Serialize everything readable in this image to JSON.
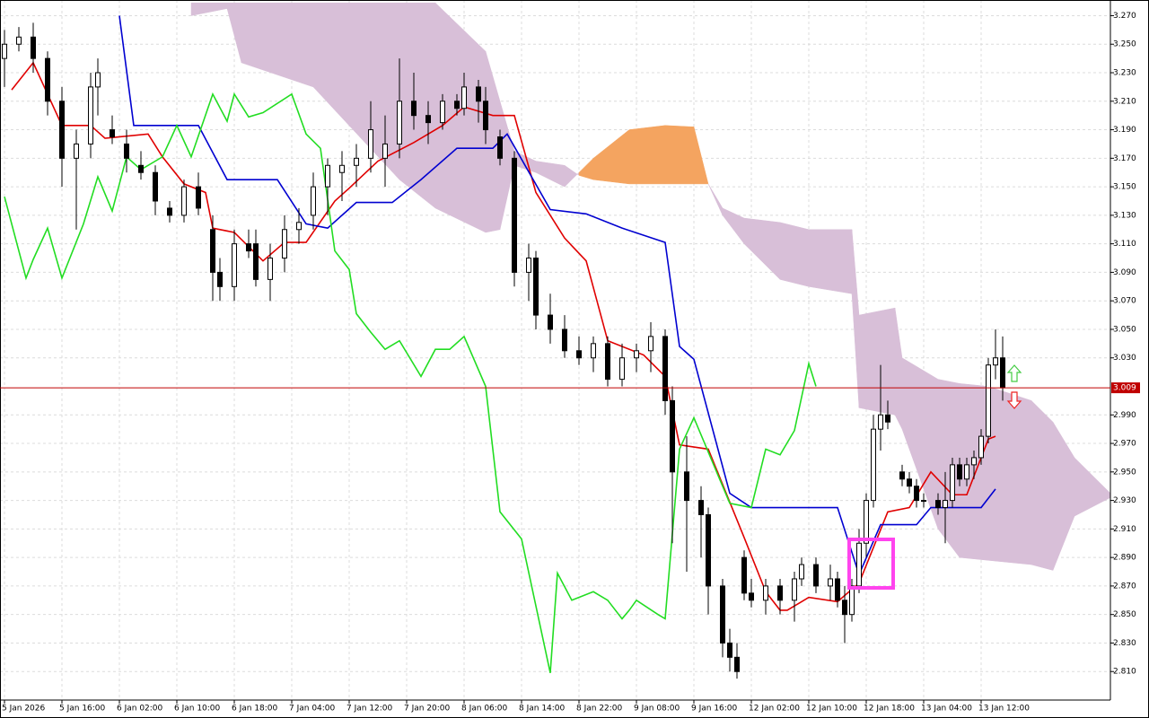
{
  "chart_data": {
    "type": "candlestick",
    "xlim": [
      -0.625,
      154
    ],
    "ylim": [
      2.79,
      3.281
    ],
    "grid": true,
    "xticks": [
      {
        "value": 0,
        "label": "5 Jan 2026"
      },
      {
        "value": 8,
        "label": "5 Jan 16:00"
      },
      {
        "value": 16,
        "label": "6 Jan 02:00"
      },
      {
        "value": 24,
        "label": "6 Jan 10:00"
      },
      {
        "value": 32,
        "label": "6 Jan 18:00"
      },
      {
        "value": 40,
        "label": "7 Jan 04:00"
      },
      {
        "value": 48,
        "label": "7 Jan 12:00"
      },
      {
        "value": 56,
        "label": "7 Jan 20:00"
      },
      {
        "value": 64,
        "label": "8 Jan 06:00"
      },
      {
        "value": 72,
        "label": "8 Jan 14:00"
      },
      {
        "value": 80,
        "label": "8 Jan 22:00"
      },
      {
        "value": 88,
        "label": "9 Jan 08:00"
      },
      {
        "value": 96,
        "label": "9 Jan 16:00"
      },
      {
        "value": 104,
        "label": "12 Jan 02:00"
      },
      {
        "value": 112,
        "label": "12 Jan 10:00"
      },
      {
        "value": 120,
        "label": "12 Jan 18:00"
      },
      {
        "value": 128,
        "label": "13 Jan 04:00"
      },
      {
        "value": 136,
        "label": "13 Jan 12:00"
      }
    ],
    "yticks": [
      {
        "value": 3.27,
        "label": "3.270"
      },
      {
        "value": 3.25,
        "label": "3.250"
      },
      {
        "value": 3.23,
        "label": "3.230"
      },
      {
        "value": 3.21,
        "label": "3.210"
      },
      {
        "value": 3.19,
        "label": "3.190"
      },
      {
        "value": 3.17,
        "label": "3.170"
      },
      {
        "value": 3.15,
        "label": "3.150"
      },
      {
        "value": 3.13,
        "label": "3.130"
      },
      {
        "value": 3.11,
        "label": "3.110"
      },
      {
        "value": 3.09,
        "label": "3.090"
      },
      {
        "value": 3.07,
        "label": "3.070"
      },
      {
        "value": 3.05,
        "label": "3.050"
      },
      {
        "value": 3.03,
        "label": "3.030"
      },
      {
        "value": 2.99,
        "label": "2.990"
      },
      {
        "value": 2.97,
        "label": "2.970"
      },
      {
        "value": 2.95,
        "label": "2.950"
      },
      {
        "value": 2.93,
        "label": "2.930"
      },
      {
        "value": 2.91,
        "label": "2.910"
      },
      {
        "value": 2.89,
        "label": "2.890"
      },
      {
        "value": 2.87,
        "label": "2.870"
      },
      {
        "value": 2.85,
        "label": "2.850"
      },
      {
        "value": 2.83,
        "label": "2.830"
      },
      {
        "value": 2.81,
        "label": "2.810"
      }
    ],
    "current_price": 3.009,
    "current_price_color": "#c00000",
    "candles": {
      "x": [
        0,
        2,
        4,
        6,
        8,
        10,
        12,
        13,
        15,
        17,
        19,
        21,
        23,
        25,
        27,
        29,
        30,
        32,
        34,
        35,
        37,
        39,
        41,
        43,
        45,
        47,
        49,
        51,
        53,
        55,
        57,
        59,
        61,
        63,
        64,
        66,
        67,
        69,
        71,
        73,
        74,
        76,
        78,
        80,
        82,
        84,
        86,
        88,
        90,
        92,
        93,
        95,
        97,
        98,
        100,
        101,
        102,
        103,
        104,
        106,
        108,
        110,
        111,
        113,
        115,
        116,
        117,
        118,
        119,
        120,
        121,
        122,
        123,
        125,
        126,
        127,
        128,
        130,
        131,
        132,
        133,
        134,
        135,
        136,
        137,
        138,
        139
      ],
      "open": [
        3.24,
        3.25,
        3.255,
        3.24,
        3.21,
        3.17,
        3.18,
        3.22,
        3.19,
        3.18,
        3.165,
        3.16,
        3.135,
        3.13,
        3.15,
        3.12,
        3.09,
        3.08,
        3.11,
        3.11,
        3.085,
        3.1,
        3.12,
        3.13,
        3.15,
        3.16,
        3.165,
        3.17,
        3.17,
        3.18,
        3.21,
        3.2,
        3.195,
        3.21,
        3.205,
        3.22,
        3.21,
        3.185,
        3.17,
        3.09,
        3.1,
        3.06,
        3.05,
        3.035,
        3.03,
        3.04,
        3.015,
        3.03,
        3.035,
        3.045,
        3.0,
        2.95,
        2.93,
        2.92,
        2.87,
        2.83,
        2.82,
        2.89,
        2.865,
        2.86,
        2.87,
        2.86,
        2.875,
        2.885,
        2.87,
        2.875,
        2.86,
        2.85,
        2.87,
        2.9,
        2.93,
        2.98,
        2.99,
        2.95,
        2.945,
        2.94,
        2.93,
        2.93,
        2.925,
        2.93,
        2.955,
        2.945,
        2.955,
        2.96,
        2.975,
        3.025,
        3.03
      ],
      "high": [
        3.26,
        3.262,
        3.265,
        3.245,
        3.22,
        3.19,
        3.23,
        3.24,
        3.2,
        3.19,
        3.175,
        3.165,
        3.14,
        3.155,
        3.16,
        3.13,
        3.1,
        3.12,
        3.12,
        3.12,
        3.11,
        3.13,
        3.135,
        3.16,
        3.17,
        3.175,
        3.18,
        3.21,
        3.2,
        3.24,
        3.23,
        3.21,
        3.215,
        3.215,
        3.23,
        3.225,
        3.22,
        3.19,
        3.175,
        3.11,
        3.105,
        3.075,
        3.06,
        3.045,
        3.045,
        3.045,
        3.04,
        3.04,
        3.055,
        3.05,
        3.01,
        2.975,
        2.94,
        2.925,
        2.875,
        2.84,
        2.83,
        2.895,
        2.875,
        2.875,
        2.875,
        2.88,
        2.89,
        2.89,
        2.885,
        2.88,
        2.87,
        2.875,
        2.91,
        2.935,
        2.99,
        3.025,
        3.0,
        2.955,
        2.95,
        2.945,
        2.935,
        2.935,
        2.95,
        2.96,
        2.96,
        2.96,
        2.965,
        2.98,
        3.03,
        3.05,
        3.045
      ],
      "low": [
        3.22,
        3.245,
        3.23,
        3.2,
        3.15,
        3.12,
        3.17,
        3.2,
        3.18,
        3.16,
        3.155,
        3.13,
        3.125,
        3.125,
        3.13,
        3.07,
        3.07,
        3.07,
        3.1,
        3.08,
        3.07,
        3.09,
        3.11,
        3.12,
        3.13,
        3.14,
        3.15,
        3.16,
        3.15,
        3.17,
        3.19,
        3.18,
        3.19,
        3.2,
        3.2,
        3.195,
        3.18,
        3.165,
        3.08,
        3.07,
        3.05,
        3.04,
        3.03,
        3.025,
        3.02,
        3.01,
        3.01,
        3.02,
        3.02,
        2.99,
        2.9,
        2.88,
        2.89,
        2.85,
        2.82,
        2.81,
        2.805,
        2.86,
        2.855,
        2.85,
        2.85,
        2.845,
        2.87,
        2.865,
        2.86,
        2.855,
        2.83,
        2.845,
        2.865,
        2.89,
        2.925,
        2.965,
        2.98,
        2.94,
        2.935,
        2.925,
        2.925,
        2.92,
        2.9,
        2.925,
        2.94,
        2.94,
        2.945,
        2.955,
        2.97,
        3.015,
        3.0
      ],
      "close": [
        3.25,
        3.255,
        3.24,
        3.21,
        3.17,
        3.18,
        3.22,
        3.23,
        3.185,
        3.17,
        3.16,
        3.14,
        3.13,
        3.15,
        3.135,
        3.09,
        3.08,
        3.11,
        3.105,
        3.085,
        3.1,
        3.12,
        3.125,
        3.15,
        3.165,
        3.165,
        3.17,
        3.19,
        3.18,
        3.21,
        3.2,
        3.195,
        3.21,
        3.205,
        3.22,
        3.21,
        3.19,
        3.17,
        3.09,
        3.1,
        3.06,
        3.05,
        3.035,
        3.03,
        3.04,
        3.015,
        3.03,
        3.035,
        3.045,
        3.0,
        2.95,
        2.93,
        2.92,
        2.87,
        2.83,
        2.82,
        2.81,
        2.865,
        2.86,
        2.87,
        2.86,
        2.875,
        2.885,
        2.87,
        2.875,
        2.86,
        2.85,
        2.87,
        2.9,
        2.93,
        2.98,
        2.99,
        2.985,
        2.945,
        2.94,
        2.93,
        2.93,
        2.925,
        2.93,
        2.955,
        2.945,
        2.955,
        2.96,
        2.975,
        3.025,
        3.03,
        3.009
      ],
      "up_color": "#ffffff",
      "down_color": "#000000"
    },
    "cloud": {
      "x": [
        26,
        31,
        33,
        43,
        55,
        60,
        67,
        69,
        71,
        74,
        78,
        80,
        82,
        87,
        92,
        96,
        98,
        100,
        103,
        108,
        112,
        118,
        119,
        124,
        125,
        130,
        133,
        137,
        143,
        146,
        149,
        154
      ],
      "span_a": [
        3.27,
        3.275,
        3.237,
        3.22,
        3.155,
        3.135,
        3.118,
        3.12,
        3.165,
        3.16,
        3.15,
        3.16,
        3.17,
        3.19,
        3.193,
        3.192,
        3.152,
        3.13,
        3.11,
        3.085,
        3.08,
        3.075,
        2.995,
        2.99,
        2.98,
        2.91,
        2.89,
        2.888,
        2.885,
        2.881,
        2.919,
        2.932
      ],
      "span_b": [
        3.279,
        3.279,
        3.279,
        3.279,
        3.279,
        3.279,
        3.245,
        3.21,
        3.175,
        3.168,
        3.165,
        3.158,
        3.155,
        3.152,
        3.152,
        3.152,
        3.152,
        3.135,
        3.128,
        3.125,
        3.12,
        3.12,
        3.06,
        3.065,
        3.03,
        3.015,
        3.012,
        3.01,
        3.0,
        2.985,
        2.96,
        2.935
      ],
      "up_color": "#f4a460",
      "down_color": "#d8bfd8"
    },
    "series": [
      {
        "color": "#e00000",
        "x": [
          1,
          4,
          8,
          12,
          14,
          20,
          22,
          25,
          28,
          29,
          32,
          36,
          39,
          42,
          46,
          48,
          52,
          57,
          61,
          64,
          68,
          71,
          74,
          78,
          81,
          84,
          89,
          92,
          94,
          98,
          103,
          106,
          108,
          109,
          112,
          116,
          119,
          123,
          126,
          129,
          132,
          134,
          137,
          138
        ],
        "values": [
          3.218,
          3.237,
          3.193,
          3.193,
          3.184,
          3.187,
          3.171,
          3.152,
          3.146,
          3.121,
          3.118,
          3.098,
          3.111,
          3.111,
          3.14,
          3.149,
          3.168,
          3.181,
          3.193,
          3.206,
          3.2,
          3.2,
          3.146,
          3.114,
          3.098,
          3.042,
          3.032,
          3.017,
          2.969,
          2.966,
          2.904,
          2.866,
          2.853,
          2.853,
          2.862,
          2.859,
          2.872,
          2.922,
          2.925,
          2.95,
          2.934,
          2.934,
          2.973,
          2.975
        ]
      },
      {
        "color": "#0000d0",
        "x": [
          16,
          18,
          27,
          31,
          38,
          42,
          45,
          49,
          54,
          58,
          63,
          68,
          70,
          76,
          81,
          86,
          92,
          94,
          96,
          101,
          104,
          116,
          119,
          122,
          127,
          129,
          136,
          138
        ],
        "values": [
          3.27,
          3.193,
          3.193,
          3.155,
          3.155,
          3.124,
          3.121,
          3.139,
          3.139,
          3.155,
          3.177,
          3.177,
          3.187,
          3.134,
          3.131,
          3.121,
          3.111,
          3.038,
          3.029,
          2.935,
          2.925,
          2.925,
          2.878,
          2.913,
          2.913,
          2.925,
          2.925,
          2.938
        ]
      },
      {
        "color": "#22dd22",
        "x": [
          0,
          3,
          4,
          6,
          8,
          11,
          13,
          15,
          17,
          19,
          22,
          24,
          26,
          29,
          31,
          32,
          34,
          36,
          40,
          42,
          44,
          46,
          48,
          49,
          51,
          53,
          55,
          58,
          60,
          62,
          64,
          67,
          69,
          72,
          76,
          77,
          79,
          82,
          84,
          86,
          87,
          88,
          91,
          92,
          94,
          96,
          101,
          104,
          106,
          108,
          110,
          112,
          113
        ],
        "values": [
          3.143,
          3.086,
          3.099,
          3.121,
          3.086,
          3.124,
          3.157,
          3.133,
          3.171,
          3.162,
          3.171,
          3.193,
          3.171,
          3.215,
          3.196,
          3.215,
          3.199,
          3.202,
          3.215,
          3.187,
          3.177,
          3.105,
          3.092,
          3.061,
          3.048,
          3.036,
          3.042,
          3.017,
          3.036,
          3.036,
          3.045,
          3.01,
          2.922,
          2.903,
          2.809,
          2.879,
          2.86,
          2.866,
          2.86,
          2.847,
          2.853,
          2.86,
          2.85,
          2.847,
          2.966,
          2.988,
          2.928,
          2.925,
          2.966,
          2.962,
          2.979,
          3.026,
          3.01
        ]
      }
    ]
  }
}
